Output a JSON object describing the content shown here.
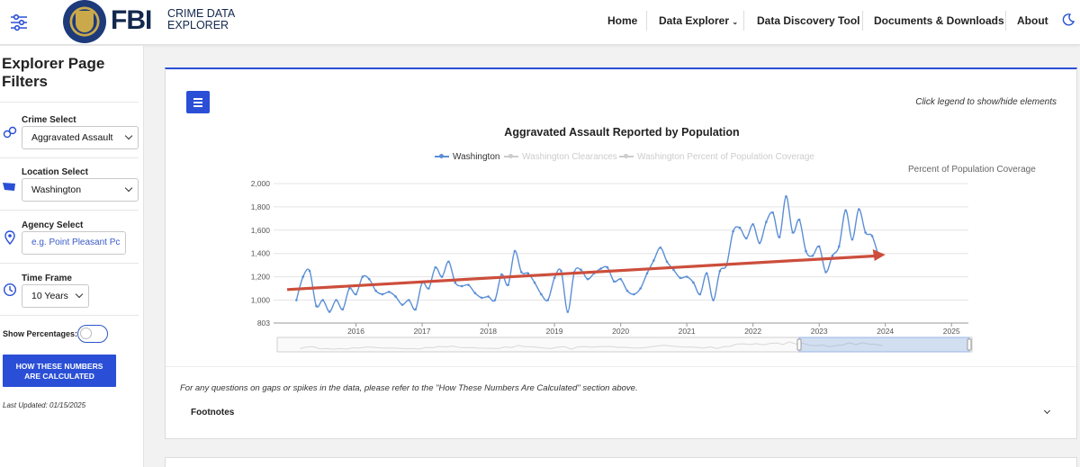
{
  "header": {
    "logo_text": "FBI",
    "logo_sub_line1": "CRIME DATA",
    "logo_sub_line2": "EXPLORER",
    "nav": [
      {
        "label": "Home"
      },
      {
        "label": "Data Explorer"
      },
      {
        "label": "Data Discovery Tool"
      },
      {
        "label": "Documents & Downloads"
      },
      {
        "label": "About"
      }
    ],
    "icons": {
      "menu": "sliders-icon",
      "theme": "moon-icon"
    }
  },
  "sidebar": {
    "title_line1": "Explorer Page",
    "title_line2": "Filters",
    "crime_label": "Crime Select",
    "crime_value": "Aggravated Assault",
    "location_label": "Location Select",
    "location_value": "Washington",
    "agency_label": "Agency Select",
    "agency_placeholder": "e.g. Point Pleasant Pc",
    "timeframe_label": "Time Frame",
    "timeframe_value": "10 Years",
    "show_percentages_label": "Show Percentages:",
    "how_button_line1": "HOW THESE NUMBERS",
    "how_button_line2": "ARE CALCULATED",
    "last_updated": "Last Updated: 01/15/2025"
  },
  "card": {
    "legend_hint": "Click legend to show/hide elements",
    "note": "For any questions on gaps or spikes in the data, please refer to the \"How These Numbers Are Calculated\" section above.",
    "footnotes_label": "Footnotes"
  },
  "chart_data": {
    "type": "line",
    "title": "Aggravated Assault Reported by Population",
    "secondary_axis_label": "Percent of Population Coverage",
    "legend": [
      {
        "name": "Washington",
        "active": true,
        "color": "#5b8fd6"
      },
      {
        "name": "Washington Clearances",
        "active": false,
        "color": "#cccccc"
      },
      {
        "name": "Washington Percent of Population Coverage",
        "active": false,
        "color": "#cccccc"
      }
    ],
    "y_ticks": [
      "2,000",
      "1,800",
      "1,600",
      "1,400",
      "1,200",
      "1,000",
      "803"
    ],
    "ylim": [
      803,
      2000
    ],
    "x_ticks": [
      "2016",
      "2017",
      "2018",
      "2019",
      "2020",
      "2021",
      "2022",
      "2023",
      "2024",
      "2025"
    ],
    "series": [
      {
        "name": "Washington",
        "x": [
          2015.1,
          2015.2,
          2015.3,
          2015.4,
          2015.5,
          2015.6,
          2015.7,
          2015.8,
          2015.9,
          2016.0,
          2016.1,
          2016.2,
          2016.3,
          2016.4,
          2016.5,
          2016.6,
          2016.7,
          2016.8,
          2016.9,
          2017.0,
          2017.1,
          2017.2,
          2017.3,
          2017.4,
          2017.5,
          2017.6,
          2017.7,
          2017.8,
          2017.9,
          2018.0,
          2018.1,
          2018.2,
          2018.3,
          2018.4,
          2018.5,
          2018.6,
          2018.7,
          2018.8,
          2018.9,
          2019.0,
          2019.1,
          2019.2,
          2019.3,
          2019.4,
          2019.5,
          2019.6,
          2019.7,
          2019.8,
          2019.9,
          2020.0,
          2020.1,
          2020.2,
          2020.3,
          2020.4,
          2020.5,
          2020.6,
          2020.7,
          2020.8,
          2020.9,
          2021.0,
          2021.1,
          2021.2,
          2021.3,
          2021.4,
          2021.5,
          2021.6,
          2021.7,
          2021.8,
          2021.9,
          2022.0,
          2022.1,
          2022.2,
          2022.3,
          2022.4,
          2022.5,
          2022.6,
          2022.7,
          2022.8,
          2022.9,
          2023.0,
          2023.1,
          2023.2,
          2023.3,
          2023.4,
          2023.5,
          2023.6,
          2023.7,
          2023.8,
          2023.9
        ],
        "values": [
          1000,
          1200,
          1250,
          950,
          1000,
          900,
          1000,
          920,
          1100,
          1050,
          1200,
          1180,
          1080,
          1050,
          1070,
          1030,
          960,
          1000,
          920,
          1150,
          1100,
          1280,
          1200,
          1330,
          1150,
          1120,
          1130,
          1060,
          1020,
          1030,
          1000,
          1220,
          1130,
          1420,
          1240,
          1230,
          1150,
          1050,
          1000,
          1190,
          1250,
          900,
          1240,
          1260,
          1180,
          1230,
          1270,
          1280,
          1160,
          1180,
          1080,
          1050,
          1100,
          1230,
          1340,
          1450,
          1330,
          1260,
          1190,
          1200,
          1150,
          1050,
          1230,
          1000,
          1250,
          1300,
          1590,
          1620,
          1530,
          1650,
          1490,
          1670,
          1750,
          1540,
          1890,
          1580,
          1690,
          1420,
          1380,
          1460,
          1240,
          1380,
          1460,
          1770,
          1520,
          1780,
          1580,
          1550,
          1370
        ]
      }
    ],
    "annotation": "trend arrow from ~1,090 (2015.6) to ~1,390 (2024.0)"
  }
}
